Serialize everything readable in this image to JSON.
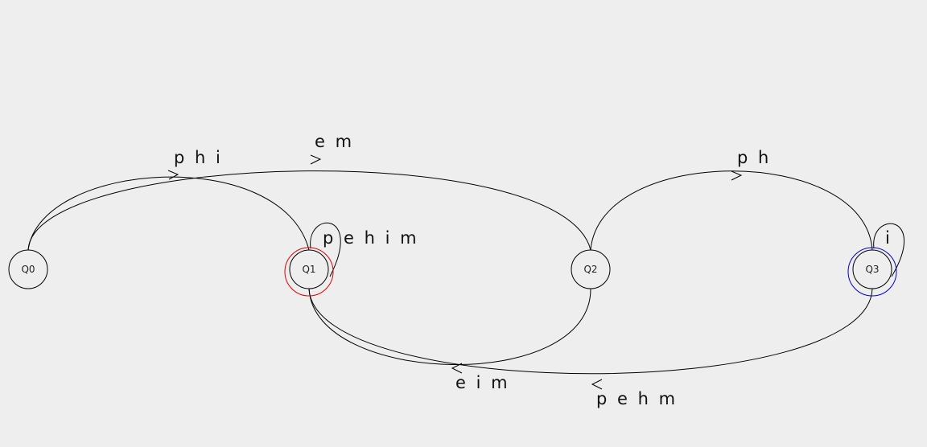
{
  "states": {
    "q0": "Q0",
    "q1": "Q1",
    "q2": "Q2",
    "q3": "Q3"
  },
  "transitions": {
    "q0_q1": "p h i",
    "q0_q2": "e m",
    "q1_loop": "p e h i m",
    "q2_q3": "p h",
    "q2_q1": "e i m",
    "q3_loop": "i",
    "q3_q1": "p e h m"
  },
  "colors": {
    "background": "#eeeeee",
    "accept_ring_q1": "#e00000",
    "accept_ring_q3": "#0000cc"
  }
}
